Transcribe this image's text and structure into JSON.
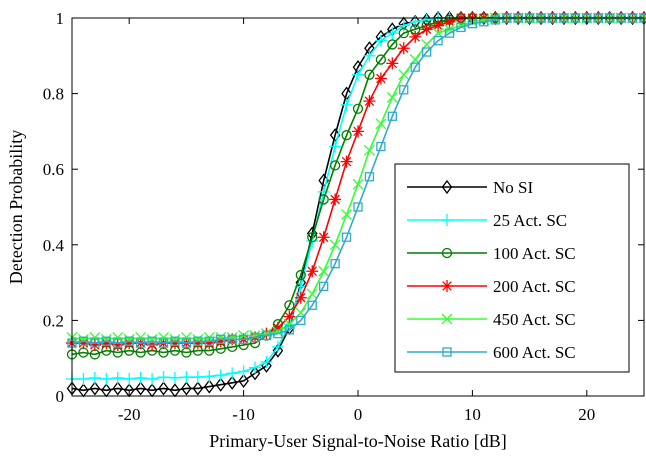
{
  "chart_data": {
    "type": "line",
    "xlabel": "Primary-User Signal-to-Noise Ratio [dB]",
    "ylabel": "Detection Probability",
    "xlim": [
      -25,
      25
    ],
    "ylim": [
      0,
      1
    ],
    "xticks": [
      -20,
      -10,
      0,
      10,
      20
    ],
    "yticks": [
      0,
      0.2,
      0.4,
      0.6,
      0.8,
      1
    ],
    "xtick_labels": [
      "-20",
      "-10",
      "0",
      "10",
      "20"
    ],
    "ytick_labels": [
      "0",
      "0.2",
      "0.4",
      "0.6",
      "0.8",
      "1"
    ],
    "grid": false,
    "legend_position": "lower-right",
    "x": [
      -25,
      -24,
      -23,
      -22,
      -21,
      -20,
      -19,
      -18,
      -17,
      -16,
      -15,
      -14,
      -13,
      -12,
      -11,
      -10,
      -9,
      -8,
      -7,
      -6,
      -5,
      -4,
      -3,
      -2,
      -1,
      0,
      1,
      2,
      3,
      4,
      5,
      6,
      7,
      8,
      9,
      10,
      11,
      12,
      13,
      14,
      15,
      16,
      17,
      18,
      19,
      20,
      21,
      22,
      23,
      24,
      25
    ],
    "series": [
      {
        "name": "No SI",
        "color": "#000000",
        "marker": "diamond",
        "values": [
          0.02,
          0.015,
          0.02,
          0.015,
          0.02,
          0.015,
          0.02,
          0.015,
          0.02,
          0.015,
          0.02,
          0.02,
          0.025,
          0.03,
          0.035,
          0.04,
          0.06,
          0.08,
          0.12,
          0.18,
          0.3,
          0.43,
          0.57,
          0.69,
          0.8,
          0.87,
          0.92,
          0.95,
          0.97,
          0.985,
          0.99,
          0.995,
          1.0,
          1.0,
          1.0,
          1.0,
          1.0,
          1.0,
          1.0,
          1.0,
          1.0,
          1.0,
          1.0,
          1.0,
          1.0,
          1.0,
          1.0,
          1.0,
          1.0,
          1.0,
          1.0
        ]
      },
      {
        "name": "25 Act. SC",
        "color": "#00ffff",
        "marker": "plus",
        "values": [
          0.045,
          0.045,
          0.048,
          0.045,
          0.048,
          0.045,
          0.048,
          0.045,
          0.05,
          0.048,
          0.05,
          0.05,
          0.052,
          0.055,
          0.06,
          0.065,
          0.075,
          0.09,
          0.13,
          0.19,
          0.29,
          0.41,
          0.54,
          0.66,
          0.77,
          0.85,
          0.9,
          0.94,
          0.96,
          0.98,
          0.99,
          0.995,
          1.0,
          1.0,
          1.0,
          1.0,
          1.0,
          1.0,
          1.0,
          1.0,
          1.0,
          1.0,
          1.0,
          1.0,
          1.0,
          1.0,
          1.0,
          1.0,
          1.0,
          1.0,
          1.0
        ]
      },
      {
        "name": "100 Act. SC",
        "color": "#007f00",
        "marker": "circle",
        "values": [
          0.11,
          0.115,
          0.11,
          0.12,
          0.115,
          0.12,
          0.115,
          0.12,
          0.115,
          0.12,
          0.115,
          0.12,
          0.12,
          0.125,
          0.13,
          0.135,
          0.14,
          0.16,
          0.19,
          0.24,
          0.32,
          0.42,
          0.52,
          0.61,
          0.69,
          0.76,
          0.85,
          0.89,
          0.93,
          0.96,
          0.97,
          0.98,
          0.99,
          0.995,
          1.0,
          1.0,
          1.0,
          1.0,
          1.0,
          1.0,
          1.0,
          1.0,
          1.0,
          1.0,
          1.0,
          1.0,
          1.0,
          1.0,
          1.0,
          1.0,
          1.0
        ]
      },
      {
        "name": "200 Act. SC",
        "color": "#ff0000",
        "marker": "asterisk",
        "values": [
          0.14,
          0.14,
          0.135,
          0.14,
          0.135,
          0.14,
          0.14,
          0.135,
          0.14,
          0.14,
          0.14,
          0.14,
          0.14,
          0.145,
          0.15,
          0.15,
          0.155,
          0.165,
          0.18,
          0.21,
          0.26,
          0.33,
          0.42,
          0.52,
          0.62,
          0.7,
          0.78,
          0.84,
          0.88,
          0.92,
          0.95,
          0.97,
          0.98,
          0.99,
          1.0,
          1.0,
          1.0,
          1.0,
          1.0,
          1.0,
          1.0,
          1.0,
          1.0,
          1.0,
          1.0,
          1.0,
          1.0,
          1.0,
          1.0,
          1.0,
          1.0
        ]
      },
      {
        "name": "450 Act. SC",
        "color": "#33ff33",
        "marker": "x",
        "values": [
          0.155,
          0.15,
          0.155,
          0.15,
          0.155,
          0.15,
          0.155,
          0.15,
          0.155,
          0.15,
          0.155,
          0.15,
          0.155,
          0.155,
          0.155,
          0.16,
          0.16,
          0.165,
          0.17,
          0.19,
          0.22,
          0.27,
          0.33,
          0.4,
          0.48,
          0.56,
          0.65,
          0.72,
          0.79,
          0.85,
          0.89,
          0.93,
          0.96,
          0.97,
          0.98,
          0.99,
          0.995,
          1.0,
          1.0,
          1.0,
          1.0,
          1.0,
          1.0,
          1.0,
          1.0,
          1.0,
          1.0,
          1.0,
          1.0,
          1.0,
          1.0
        ]
      },
      {
        "name": "600 Act. SC",
        "color": "#33aacc",
        "marker": "square",
        "values": [
          0.14,
          0.145,
          0.14,
          0.145,
          0.14,
          0.145,
          0.14,
          0.145,
          0.14,
          0.145,
          0.14,
          0.145,
          0.145,
          0.15,
          0.15,
          0.15,
          0.155,
          0.16,
          0.165,
          0.175,
          0.2,
          0.24,
          0.29,
          0.35,
          0.42,
          0.5,
          0.58,
          0.66,
          0.74,
          0.81,
          0.87,
          0.91,
          0.94,
          0.96,
          0.975,
          0.985,
          0.99,
          0.995,
          1.0,
          1.0,
          1.0,
          1.0,
          1.0,
          1.0,
          1.0,
          1.0,
          1.0,
          1.0,
          1.0,
          1.0,
          1.0
        ]
      }
    ]
  }
}
